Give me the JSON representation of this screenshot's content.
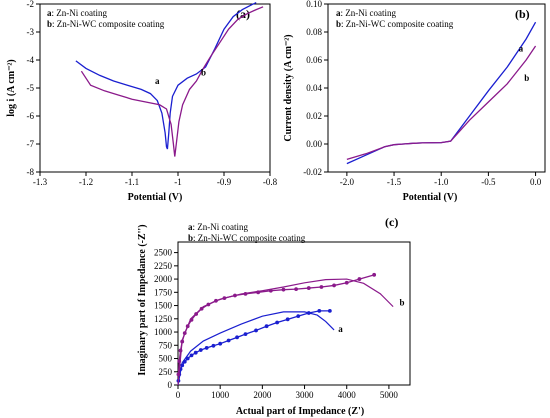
{
  "colors": {
    "a": "#1a1fd0",
    "b": "#8b1a8b"
  },
  "chart_data": [
    {
      "id": "a",
      "type": "line",
      "panel_label": "(a)",
      "xlabel": "Potential (V)",
      "ylabel": "log i (A cm⁻²)",
      "xlim": [
        -1.3,
        -0.8
      ],
      "ylim": [
        -8,
        -2
      ],
      "xticks": [
        -1.3,
        -1.2,
        -1.1,
        -1.0,
        -0.9,
        -0.8
      ],
      "xtick_labels": [
        "-1.3",
        "-1.2",
        "-1.1",
        "-1",
        "-0.9",
        "-0.8"
      ],
      "yticks": [
        -8,
        -7,
        -6,
        -5,
        -4,
        -3,
        -2
      ],
      "ytick_labels": [
        "-8",
        "-7",
        "-6",
        "-5",
        "-4",
        "-3",
        "-2"
      ],
      "legend": [
        {
          "key": "a",
          "label": "Zn-Ni coating"
        },
        {
          "key": "b",
          "label": "Zn-Ni-WC composite coating"
        }
      ],
      "series": [
        {
          "key": "a",
          "curve_label": "a",
          "x": [
            -1.222,
            -1.2,
            -1.17,
            -1.14,
            -1.11,
            -1.08,
            -1.06,
            -1.045,
            -1.035,
            -1.028,
            -1.025,
            -1.023,
            -1.02,
            -1.017,
            -1.012,
            -1.0,
            -0.98,
            -0.96,
            -0.94,
            -0.92,
            -0.9,
            -0.88,
            -0.86,
            -0.84,
            -0.83
          ],
          "y": [
            -4.03,
            -4.3,
            -4.55,
            -4.75,
            -4.9,
            -5.05,
            -5.2,
            -5.45,
            -5.9,
            -6.6,
            -7.1,
            -7.18,
            -6.6,
            -5.9,
            -5.3,
            -4.9,
            -4.65,
            -4.5,
            -4.25,
            -3.6,
            -2.9,
            -2.45,
            -2.2,
            -2.03,
            -1.95
          ],
          "label_x": -1.05,
          "label_y": -4.85
        },
        {
          "key": "b",
          "curve_label": "b",
          "x": [
            -1.21,
            -1.19,
            -1.16,
            -1.13,
            -1.1,
            -1.07,
            -1.04,
            -1.025,
            -1.015,
            -1.01,
            -1.007,
            -1.003,
            -0.998,
            -0.99,
            -0.975,
            -0.96,
            -0.945,
            -0.93,
            -0.91,
            -0.89,
            -0.87,
            -0.85,
            -0.83,
            -0.815
          ],
          "y": [
            -4.4,
            -4.9,
            -5.1,
            -5.25,
            -5.4,
            -5.5,
            -5.6,
            -5.75,
            -6.3,
            -7.0,
            -7.45,
            -6.9,
            -6.2,
            -5.6,
            -5.05,
            -4.75,
            -4.3,
            -3.9,
            -3.4,
            -2.9,
            -2.55,
            -2.35,
            -2.2,
            -2.1
          ],
          "label_x": -0.95,
          "label_y": -4.55
        }
      ]
    },
    {
      "id": "b",
      "type": "line",
      "panel_label": "(b)",
      "xlabel": "Potential (V)",
      "ylabel": "Current density (A cm⁻²)",
      "xlim": [
        -2.2,
        0.1
      ],
      "ylim": [
        -0.02,
        0.1
      ],
      "xticks": [
        -2.0,
        -1.5,
        -1.0,
        -0.5,
        0.0
      ],
      "xtick_labels": [
        "-2.0",
        "-1.5",
        "-1.0",
        "-0.5",
        "0.0"
      ],
      "yticks": [
        -0.02,
        0.0,
        0.02,
        0.04,
        0.06,
        0.08,
        0.1
      ],
      "ytick_labels": [
        "-0.02",
        "0.00",
        "0.02",
        "0.04",
        "0.06",
        "0.08",
        "0.10"
      ],
      "legend": [
        {
          "key": "a",
          "label": "Zn-Ni coating"
        },
        {
          "key": "b",
          "label": "Zn-Ni-WC composite coating"
        }
      ],
      "series": [
        {
          "key": "a",
          "curve_label": "a",
          "x": [
            -2.0,
            -1.8,
            -1.6,
            -1.5,
            -1.4,
            -1.3,
            -1.2,
            -1.0,
            -0.9,
            -0.7,
            -0.5,
            -0.3,
            -0.1,
            0.0
          ],
          "y": [
            -0.014,
            -0.008,
            -0.002,
            -0.0005,
            0.0,
            0.0005,
            0.0008,
            0.001,
            0.002,
            0.02,
            0.038,
            0.055,
            0.075,
            0.087
          ],
          "label_x": -0.18,
          "label_y": 0.066
        },
        {
          "key": "b",
          "curve_label": "b",
          "x": [
            -2.0,
            -1.8,
            -1.6,
            -1.5,
            -1.4,
            -1.3,
            -1.2,
            -1.0,
            -0.9,
            -0.7,
            -0.5,
            -0.3,
            -0.1,
            0.0
          ],
          "y": [
            -0.011,
            -0.007,
            -0.002,
            -0.0005,
            0.0,
            0.0005,
            0.0008,
            0.001,
            0.002,
            0.017,
            0.03,
            0.043,
            0.06,
            0.07
          ],
          "label_x": -0.12,
          "label_y": 0.045
        }
      ]
    },
    {
      "id": "c",
      "type": "line",
      "panel_label": "(c)",
      "xlabel": "Actual part of Impedance (Z')",
      "ylabel": "Imaginary part of Impedance (-Z'')",
      "xlim": [
        0,
        5500
      ],
      "ylim": [
        0,
        2700
      ],
      "xticks": [
        0,
        1000,
        2000,
        3000,
        4000,
        5000
      ],
      "xtick_labels": [
        "0",
        "1000",
        "2000",
        "3000",
        "4000",
        "5000"
      ],
      "yticks": [
        0,
        250,
        500,
        750,
        1000,
        1250,
        1500,
        1750,
        2000,
        2250,
        2500
      ],
      "ytick_labels": [
        "0",
        "250",
        "500",
        "750",
        "1000",
        "1250",
        "1500",
        "1750",
        "2000",
        "2250",
        "2500"
      ],
      "legend": [
        {
          "key": "a",
          "label": "Zn-Ni coating"
        },
        {
          "key": "b",
          "label": "Zn-Ni-WC composite coating"
        }
      ],
      "series": [
        {
          "key": "a",
          "name_role": "measured",
          "curve_label": "a",
          "x": [
            10,
            30,
            60,
            100,
            160,
            230,
            320,
            420,
            540,
            680,
            840,
            1000,
            1200,
            1400,
            1600,
            1850,
            2100,
            2350,
            2600,
            2850,
            3100,
            3350,
            3600
          ],
          "y": [
            80,
            200,
            300,
            370,
            440,
            500,
            560,
            610,
            660,
            700,
            740,
            780,
            840,
            900,
            960,
            1030,
            1110,
            1180,
            1240,
            1300,
            1360,
            1400,
            1400
          ],
          "fit_x": [
            0,
            100,
            300,
            600,
            1000,
            1500,
            2000,
            2500,
            3000,
            3300,
            3500,
            3700
          ],
          "fit_y": [
            0,
            420,
            640,
            830,
            980,
            1150,
            1300,
            1380,
            1380,
            1320,
            1200,
            1040
          ],
          "label_x": 3800,
          "label_y": 1000
        },
        {
          "key": "b",
          "name_role": "measured",
          "curve_label": "b",
          "x": [
            10,
            30,
            60,
            100,
            160,
            230,
            320,
            430,
            560,
            720,
            900,
            1100,
            1350,
            1600,
            1900,
            2200,
            2500,
            2800,
            3100,
            3400,
            3700,
            4000,
            4300,
            4650
          ],
          "y": [
            200,
            450,
            650,
            820,
            980,
            1110,
            1230,
            1340,
            1440,
            1520,
            1590,
            1640,
            1690,
            1720,
            1750,
            1780,
            1800,
            1810,
            1830,
            1850,
            1880,
            1930,
            2000,
            2080
          ],
          "fit_x": [
            0,
            100,
            300,
            600,
            1000,
            1500,
            2000,
            2500,
            3000,
            3500,
            4000,
            4400,
            4800,
            5100
          ],
          "fit_y": [
            0,
            850,
            1250,
            1480,
            1620,
            1720,
            1780,
            1850,
            1930,
            1990,
            2000,
            1920,
            1720,
            1480
          ],
          "label_x": 5250,
          "label_y": 1500
        }
      ]
    }
  ]
}
